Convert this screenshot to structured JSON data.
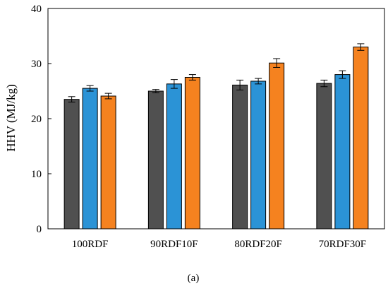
{
  "caption": "(a)",
  "chart_data": {
    "type": "bar",
    "title": "",
    "xlabel": "",
    "ylabel": "HHV (MJ/kg)",
    "ylim": [
      0,
      40
    ],
    "yticks": [
      0,
      10,
      20,
      30,
      40
    ],
    "grid": false,
    "legend": "none",
    "categories": [
      "100RDF",
      "90RDF10F",
      "80RDF20F",
      "70RDF30F"
    ],
    "series": [
      {
        "color": "#505050",
        "values": [
          23.5,
          25.0,
          26.1,
          26.4
        ],
        "errors": [
          0.5,
          0.3,
          0.9,
          0.6
        ]
      },
      {
        "color": "#2b93d6",
        "values": [
          25.5,
          26.3,
          26.8,
          28.0
        ],
        "errors": [
          0.5,
          0.8,
          0.5,
          0.7
        ]
      },
      {
        "color": "#f5821f",
        "values": [
          24.1,
          27.5,
          30.1,
          33.0
        ],
        "errors": [
          0.5,
          0.5,
          0.8,
          0.6
        ]
      }
    ]
  }
}
